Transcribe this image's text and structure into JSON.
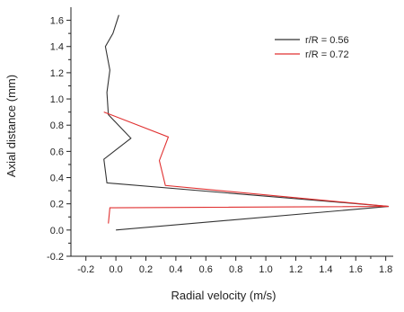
{
  "chart_data": {
    "type": "line",
    "xlabel": "Radial velocity (m/s)",
    "ylabel": "Axial distance (mm)",
    "xlim": [
      -0.3,
      1.85
    ],
    "ylim": [
      -0.2,
      1.7
    ],
    "xticks": [
      -0.2,
      0.0,
      0.2,
      0.4,
      0.6,
      0.8,
      1.0,
      1.2,
      1.4,
      1.6,
      1.8
    ],
    "yticks": [
      -0.2,
      0.0,
      0.2,
      0.4,
      0.6,
      0.8,
      1.0,
      1.2,
      1.4,
      1.6
    ],
    "xtick_labels": [
      "-0.2",
      "0.0",
      "0.2",
      "0.4",
      "0.6",
      "0.8",
      "1.0",
      "1.2",
      "1.4",
      "1.6",
      "1.8"
    ],
    "ytick_labels": [
      "-0.2",
      "0.0",
      "0.2",
      "0.4",
      "0.6",
      "0.8",
      "1.0",
      "1.2",
      "1.4",
      "1.6"
    ],
    "grid": false,
    "legend_position": "top-right",
    "series": [
      {
        "name": "r/R = 0.56",
        "color": "#333333",
        "points": [
          [
            0.0,
            0.0
          ],
          [
            1.82,
            0.18
          ],
          [
            -0.06,
            0.36
          ],
          [
            -0.08,
            0.54
          ],
          [
            0.1,
            0.7
          ],
          [
            -0.05,
            0.88
          ],
          [
            -0.06,
            1.05
          ],
          [
            -0.04,
            1.22
          ],
          [
            -0.07,
            1.4
          ],
          [
            -0.02,
            1.5
          ],
          [
            0.02,
            1.64
          ]
        ]
      },
      {
        "name": "r/R = 0.72",
        "color": "#e03030",
        "points": [
          [
            -0.05,
            0.05
          ],
          [
            -0.04,
            0.17
          ],
          [
            1.82,
            0.18
          ],
          [
            0.33,
            0.34
          ],
          [
            0.29,
            0.53
          ],
          [
            0.35,
            0.71
          ],
          [
            -0.08,
            0.9
          ]
        ]
      }
    ]
  }
}
